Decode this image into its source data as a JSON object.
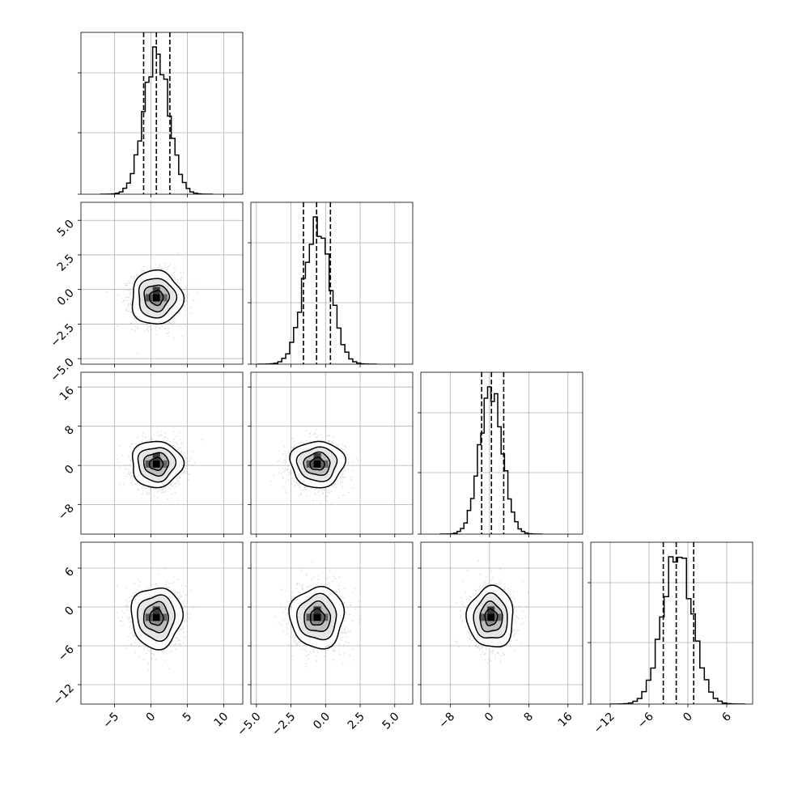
{
  "chart_data": {
    "type": "corner",
    "description_of_panels": "4x4 lower-triangle corner plot: 1D histograms with 16/50/84% quantile dashed lines on the diagonal, 2D scatter/density/contour panels below",
    "grid": true,
    "variables": [
      {
        "range": [
          -9.6,
          12.6
        ],
        "ticks": [
          -5,
          0,
          5,
          10
        ],
        "tick_labels": [
          "−5",
          "0",
          "5",
          "10"
        ],
        "quantiles": [
          -1.0,
          0.75,
          2.6
        ],
        "center": 0.75,
        "sigma": 1.7
      },
      {
        "range": [
          -5.4,
          6.3
        ],
        "ticks": [
          -5.0,
          -2.5,
          0.0,
          2.5,
          5.0
        ],
        "tick_labels": [
          "−5.0",
          "−2.5",
          "0.0",
          "2.5",
          "5.0"
        ],
        "quantiles": [
          -1.6,
          -0.65,
          0.35
        ],
        "center": -0.6,
        "sigma": 0.95
      },
      {
        "range": [
          -14,
          19
        ],
        "ticks": [
          -8,
          0,
          8,
          16
        ],
        "tick_labels": [
          "−8",
          "0",
          "8",
          "16"
        ],
        "quantiles": [
          -1.6,
          0.4,
          2.9
        ],
        "center": 0.3,
        "sigma": 2.3
      },
      {
        "range": [
          -15,
          10
        ],
        "ticks": [
          -12,
          -6,
          0,
          6
        ],
        "tick_labels": [
          "−12",
          "−6",
          "0",
          "6"
        ],
        "quantiles": [
          -3.8,
          -1.8,
          0.9
        ],
        "center": -1.6,
        "sigma": 2.3
      }
    ],
    "hist_bins": 30,
    "hist_yticks_count": 2,
    "density_levels": [
      "0.5-sigma",
      "1-sigma",
      "1.5-sigma",
      "2-sigma"
    ]
  }
}
